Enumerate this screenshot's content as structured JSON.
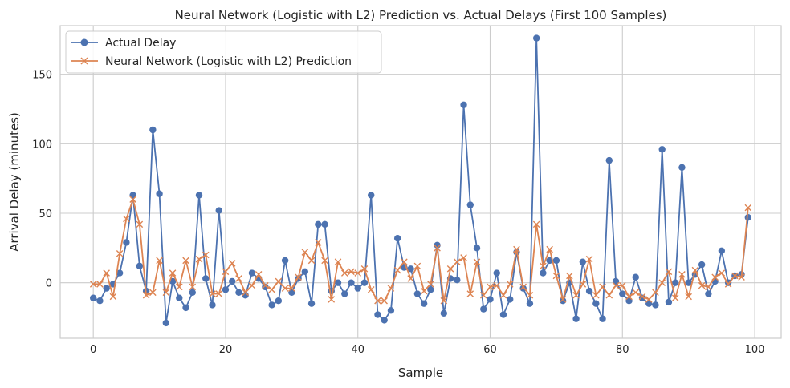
{
  "chart_data": {
    "type": "line",
    "title": "Neural Network (Logistic with L2) Prediction vs. Actual Delays (First 100 Samples)",
    "xlabel": "Sample",
    "ylabel": "Arrival Delay (minutes)",
    "xlim": [
      -5,
      104
    ],
    "ylim": [
      -40,
      185
    ],
    "xticks": [
      0,
      20,
      40,
      60,
      80,
      100
    ],
    "yticks": [
      0,
      50,
      100,
      150
    ],
    "grid": true,
    "legend_position": "top-left",
    "series": [
      {
        "name": "Actual Delay",
        "color": "#4c72b0",
        "marker": "circle",
        "values": [
          -11,
          -13,
          -4,
          -1,
          7,
          29,
          63,
          12,
          -6,
          110,
          64,
          -29,
          1,
          -11,
          -18,
          -7,
          63,
          3,
          -16,
          52,
          -5,
          1,
          -7,
          -9,
          7,
          3,
          -3,
          -16,
          -13,
          16,
          -7,
          3,
          8,
          -15,
          42,
          42,
          -6,
          0,
          -8,
          0,
          -4,
          0,
          63,
          -23,
          -27,
          -20,
          32,
          11,
          10,
          -8,
          -15,
          -5,
          27,
          -22,
          3,
          2,
          128,
          56,
          25,
          -19,
          -12,
          7,
          -23,
          -12,
          22,
          -4,
          -15,
          176,
          7,
          16,
          16,
          -13,
          0,
          -26,
          15,
          -6,
          -15,
          -26,
          88,
          1,
          -8,
          -13,
          4,
          -11,
          -15,
          -16,
          96,
          -14,
          0,
          83,
          0,
          6,
          13,
          -8,
          1,
          23,
          0,
          5,
          6,
          47
        ]
      },
      {
        "name": "Neural Network (Logistic with L2) Prediction",
        "color": "#dd8452",
        "marker": "x",
        "values": [
          -1,
          -1,
          7,
          -10,
          21,
          46,
          60,
          42,
          -9,
          -7,
          16,
          -7,
          7,
          -3,
          16,
          -3,
          17,
          20,
          -8,
          -8,
          8,
          14,
          3,
          -7,
          -2,
          6,
          -2,
          -5,
          1,
          -4,
          -4,
          4,
          22,
          16,
          29,
          16,
          -12,
          15,
          7,
          8,
          7,
          10,
          -5,
          -13,
          -13,
          -4,
          9,
          15,
          3,
          12,
          -6,
          -1,
          25,
          -13,
          10,
          15,
          18,
          -8,
          15,
          -9,
          -3,
          -2,
          -9,
          -1,
          24,
          -3,
          -9,
          42,
          12,
          24,
          5,
          -12,
          5,
          -9,
          -1,
          17,
          -9,
          -3,
          -9,
          -2,
          -2,
          -10,
          -7,
          -10,
          -12,
          -7,
          0,
          8,
          -11,
          6,
          -10,
          9,
          -2,
          -3,
          4,
          7,
          -1,
          5,
          4,
          54
        ]
      }
    ]
  }
}
